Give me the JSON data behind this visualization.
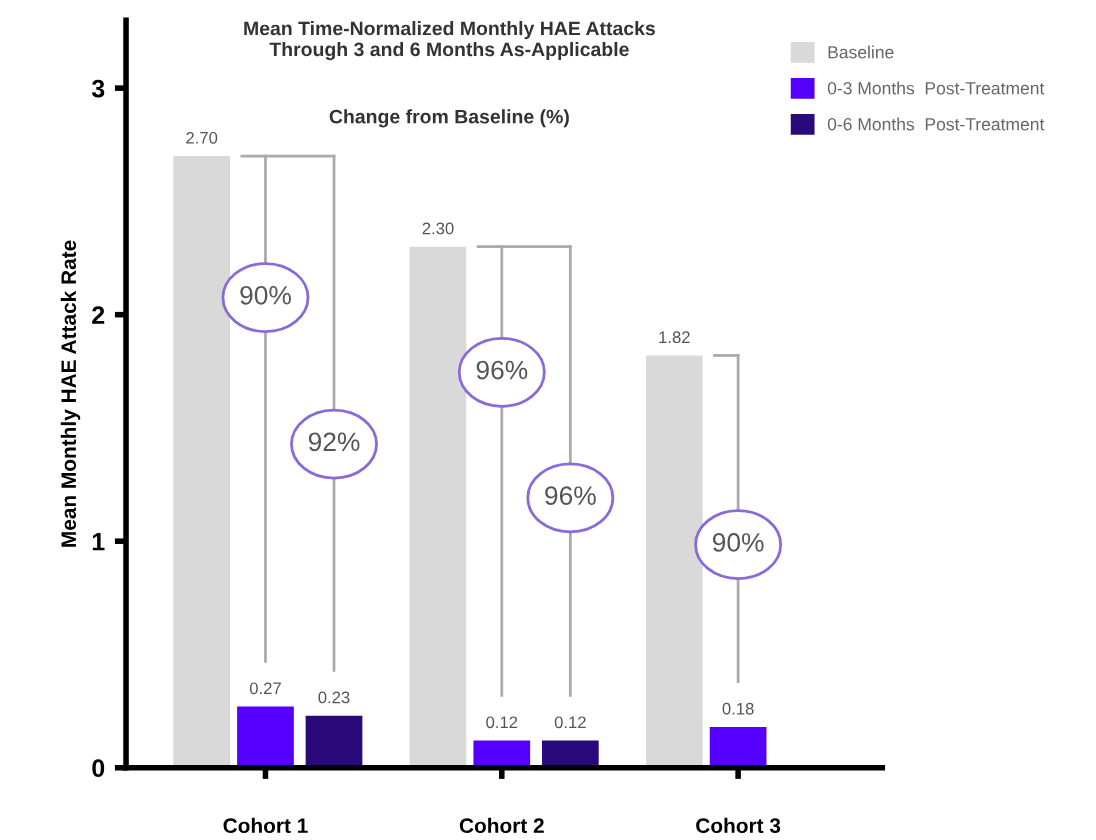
{
  "chart_data": {
    "type": "bar",
    "title": "Mean Time-Normalized Monthly HAE Attacks\nThrough 3 and 6 Months As-Applicable",
    "subtitle": "Change from Baseline (%)",
    "ylabel": "Mean Monthly HAE Attack Rate",
    "categories": [
      "Cohort 1",
      "Cohort 2",
      "Cohort 3"
    ],
    "series": [
      {
        "name": "Baseline",
        "color": "#d9d9d9",
        "values": [
          2.7,
          2.3,
          1.82
        ],
        "value_labels": [
          "2.70",
          "2.30",
          "1.82"
        ]
      },
      {
        "name": "0-3 Months  Post-Treatment",
        "color": "#5500ff",
        "values": [
          0.27,
          0.12,
          0.18
        ],
        "value_labels": [
          "0.27",
          "0.12",
          "0.18"
        ]
      },
      {
        "name": "0-6 Months  Post-Treatment",
        "color": "#2a0a7a",
        "values": [
          0.23,
          0.12,
          null
        ],
        "value_labels": [
          "0.23",
          "0.12",
          null
        ]
      }
    ],
    "annotations": [
      "90%",
      "92%",
      "96%",
      "96%",
      "90%"
    ],
    "ylim": [
      0,
      3.3
    ],
    "yticks": [
      0,
      1,
      2,
      3
    ],
    "grid": false,
    "legend": "top right"
  }
}
